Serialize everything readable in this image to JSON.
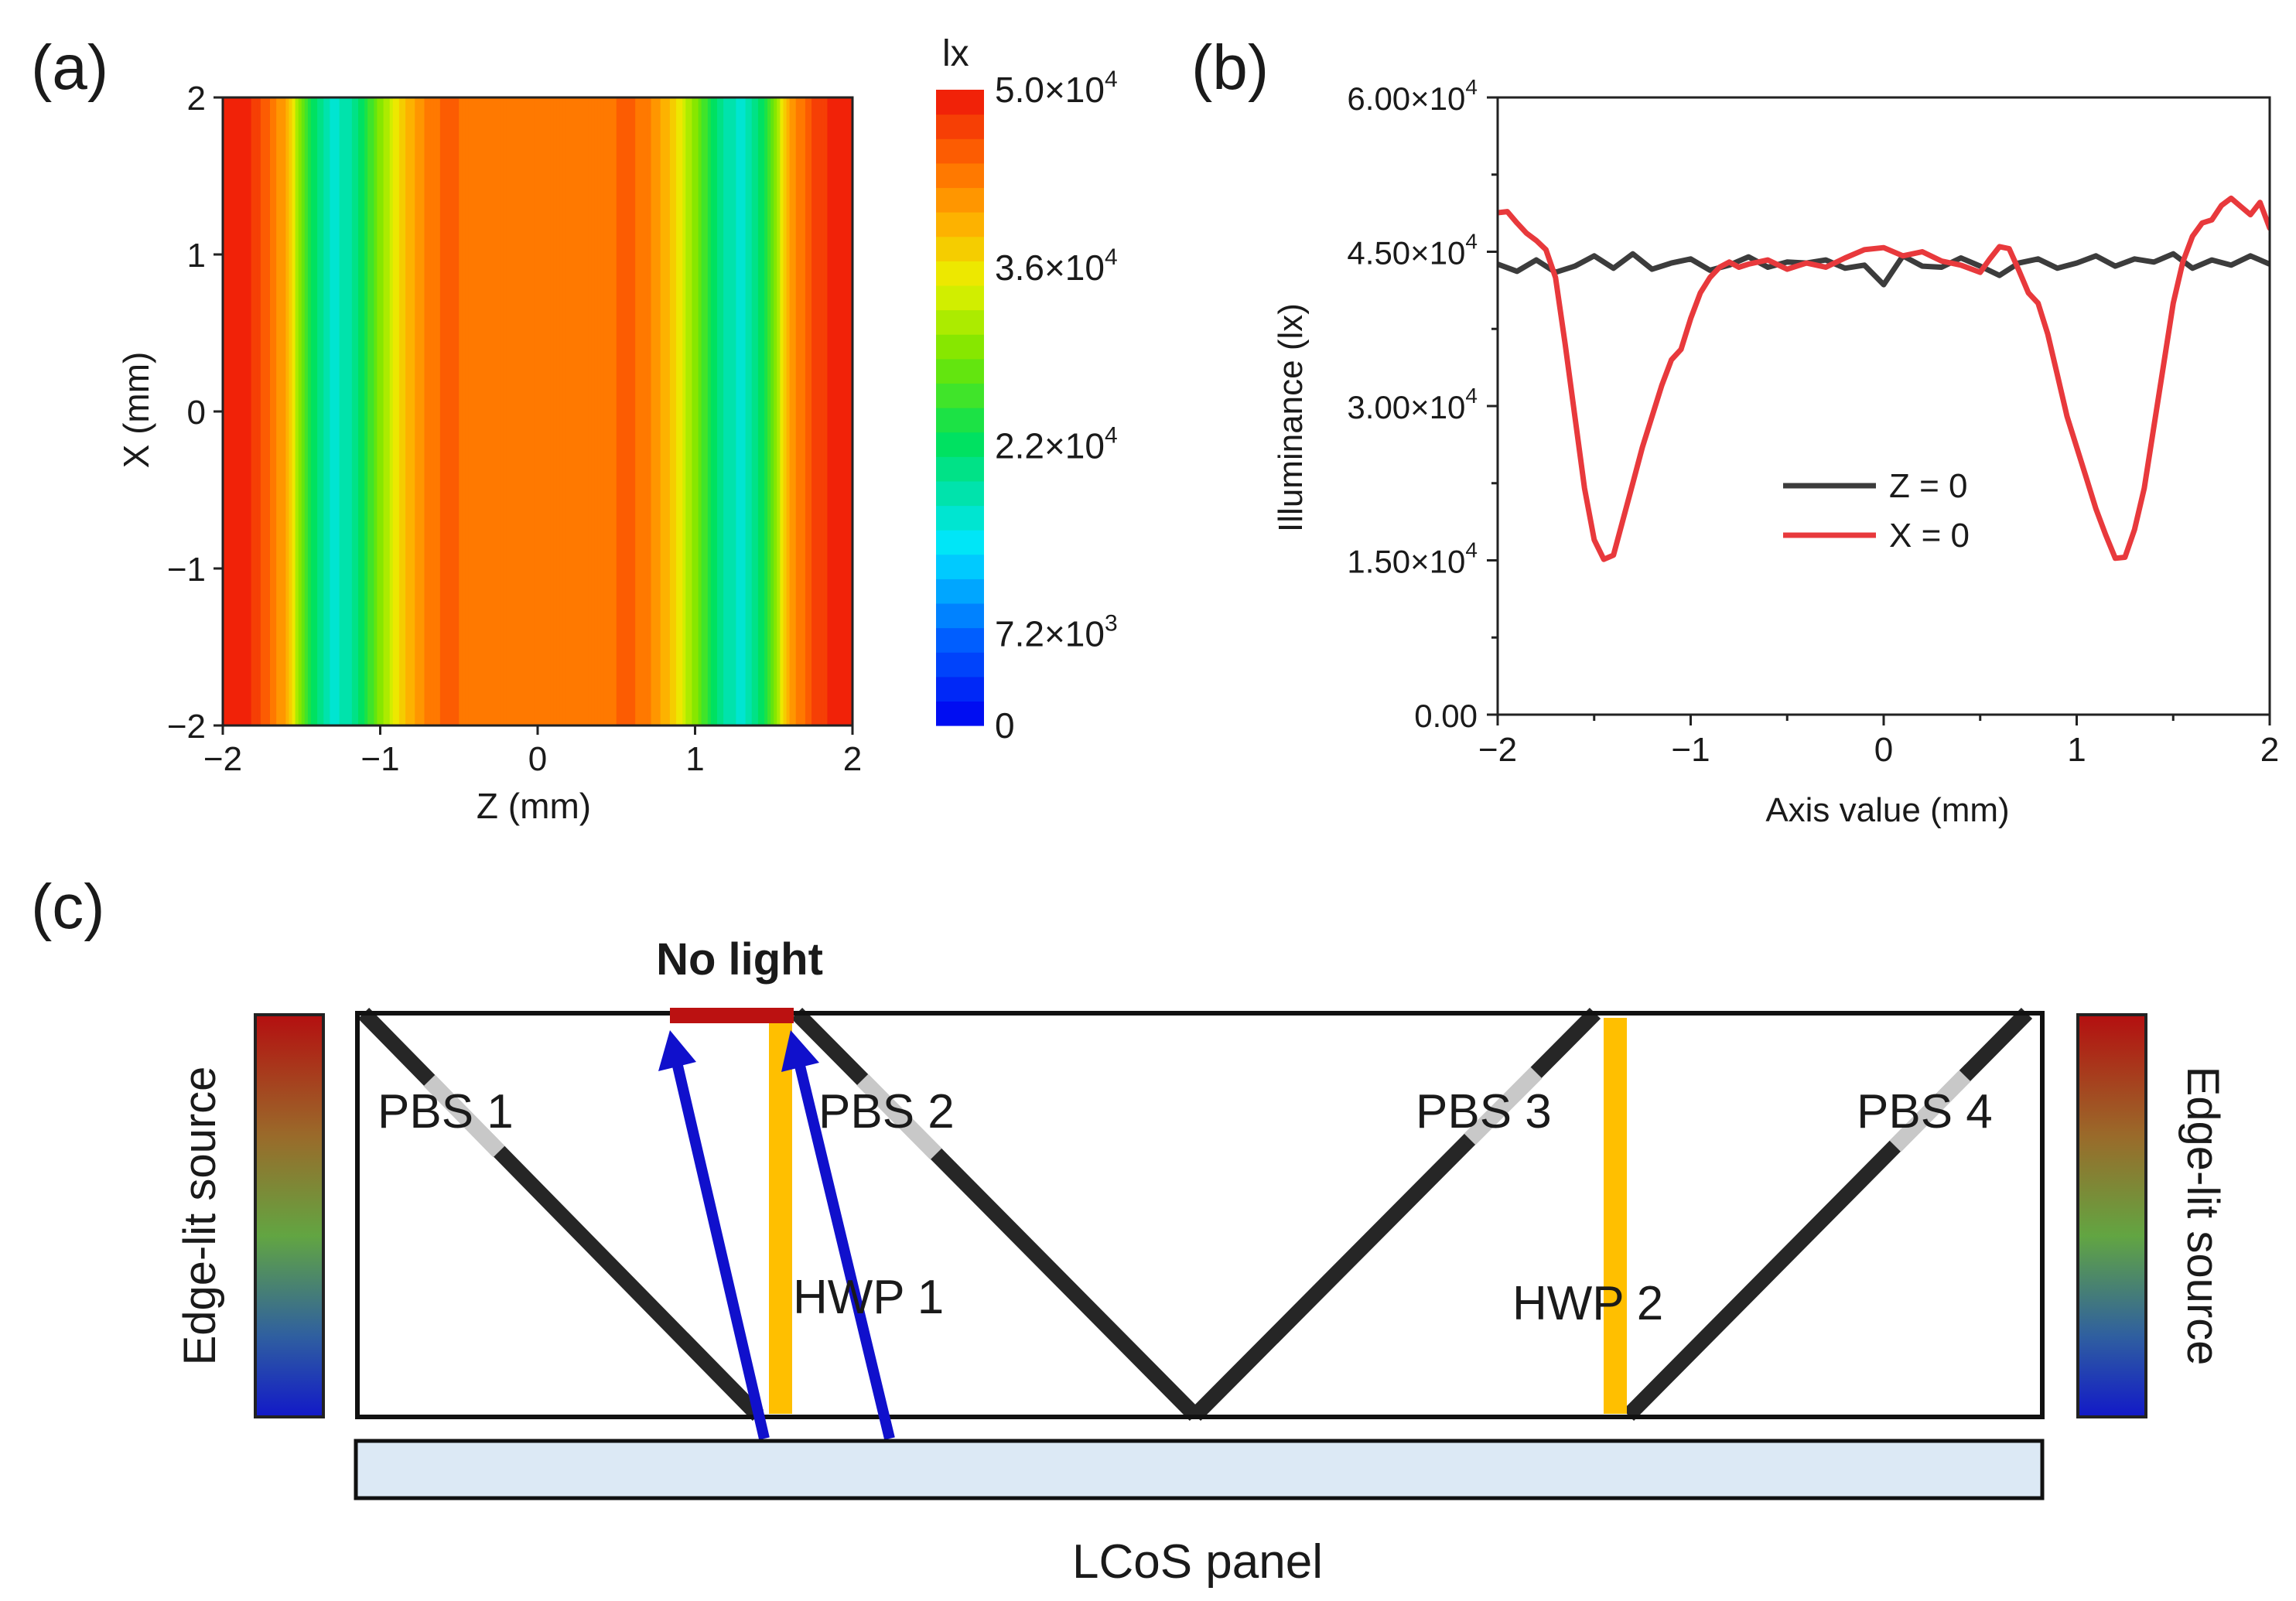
{
  "panel_labels": {
    "a": "(a)",
    "b": "(b)",
    "c": "(c)"
  },
  "chart_data": [
    {
      "id": "a",
      "type": "heatmap",
      "title": "",
      "xlabel": "Z (mm)",
      "ylabel": "X (mm)",
      "xlim": [
        -2,
        2
      ],
      "ylim": [
        -2,
        2
      ],
      "x_ticks": [
        -2,
        -1,
        0,
        1,
        2
      ],
      "x_tick_labels": [
        "−2",
        "−1",
        "0",
        "1",
        "2"
      ],
      "y_ticks": [
        -2,
        -1,
        0,
        1,
        2
      ],
      "y_tick_labels": [
        "−2",
        "−1",
        "0",
        "1",
        "2"
      ],
      "colorbar": {
        "unit_label": "lx",
        "min": 0,
        "max": 50000,
        "levels": 26,
        "ticks": [
          {
            "value": 50000,
            "label": "5.0×10",
            "exp": "4"
          },
          {
            "value": 36000,
            "label": "3.6×10",
            "exp": "4"
          },
          {
            "value": 22000,
            "label": "2.2×10",
            "exp": "4"
          },
          {
            "value": 7200,
            "label": "7.2×10",
            "exp": "3"
          },
          {
            "value": 0,
            "label": "0",
            "exp": ""
          }
        ]
      },
      "profile_vs_z": {
        "z": [
          -2.0,
          -1.8,
          -1.6,
          -1.45,
          -1.3,
          -1.15,
          -1.0,
          -0.85,
          -0.7,
          -0.6,
          -0.4,
          0.0,
          0.4,
          0.6,
          0.7,
          0.85,
          1.0,
          1.15,
          1.3,
          1.45,
          1.6,
          1.75,
          1.9,
          2.0
        ],
        "illuminance": [
          49000,
          48000,
          40000,
          24000,
          16000,
          20000,
          30000,
          38000,
          43000,
          44500,
          44000,
          44000,
          44000,
          44500,
          43000,
          38000,
          30000,
          20000,
          16000,
          24000,
          40000,
          47000,
          49000,
          49500
        ]
      }
    },
    {
      "id": "b",
      "type": "line",
      "title": "",
      "xlabel": "Axis value (mm)",
      "ylabel": "Illuminance (lx)",
      "xlim": [
        -2,
        2
      ],
      "ylim": [
        0,
        60000
      ],
      "x_ticks": [
        -2,
        -1,
        0,
        1,
        2
      ],
      "x_tick_labels": [
        "−2",
        "−1",
        "0",
        "1",
        "2"
      ],
      "y_ticks": [
        0,
        15000,
        30000,
        45000,
        60000
      ],
      "y_tick_labels": [
        {
          "mant": "0.00",
          "exp": ""
        },
        {
          "mant": "1.50×10",
          "exp": "4"
        },
        {
          "mant": "3.00×10",
          "exp": "4"
        },
        {
          "mant": "4.50×10",
          "exp": "4"
        },
        {
          "mant": "6.00×10",
          "exp": "4"
        }
      ],
      "legend_position": "center-right",
      "series": [
        {
          "name": "Z = 0",
          "color": "#3c3c3c",
          "x": [
            -2.0,
            -1.9,
            -1.8,
            -1.7,
            -1.6,
            -1.5,
            -1.4,
            -1.3,
            -1.2,
            -1.1,
            -1.0,
            -0.9,
            -0.8,
            -0.7,
            -0.6,
            -0.5,
            -0.4,
            -0.3,
            -0.2,
            -0.1,
            0.0,
            0.1,
            0.2,
            0.3,
            0.4,
            0.5,
            0.6,
            0.7,
            0.8,
            0.9,
            1.0,
            1.1,
            1.2,
            1.3,
            1.4,
            1.5,
            1.6,
            1.7,
            1.8,
            1.9,
            2.0
          ],
          "y": [
            43800,
            43100,
            44200,
            43000,
            43600,
            44600,
            43400,
            44800,
            43300,
            43900,
            44300,
            43200,
            43700,
            44500,
            43500,
            44000,
            43900,
            44200,
            43400,
            43700,
            41800,
            44600,
            43600,
            43500,
            44400,
            43600,
            42700,
            43900,
            44300,
            43400,
            43900,
            44600,
            43600,
            44300,
            44000,
            44800,
            43400,
            44200,
            43700,
            44600,
            43800
          ]
        },
        {
          "name": "X = 0",
          "color": "#e8393c",
          "x": [
            -2.0,
            -1.95,
            -1.9,
            -1.85,
            -1.8,
            -1.75,
            -1.7,
            -1.65,
            -1.6,
            -1.55,
            -1.5,
            -1.45,
            -1.4,
            -1.35,
            -1.3,
            -1.25,
            -1.2,
            -1.15,
            -1.1,
            -1.05,
            -1.0,
            -0.95,
            -0.9,
            -0.85,
            -0.8,
            -0.75,
            -0.7,
            -0.6,
            -0.5,
            -0.4,
            -0.3,
            -0.2,
            -0.1,
            0.0,
            0.1,
            0.2,
            0.3,
            0.4,
            0.5,
            0.55,
            0.6,
            0.65,
            0.7,
            0.75,
            0.8,
            0.85,
            0.9,
            0.95,
            1.0,
            1.05,
            1.1,
            1.15,
            1.2,
            1.25,
            1.3,
            1.35,
            1.4,
            1.45,
            1.5,
            1.55,
            1.6,
            1.65,
            1.7,
            1.75,
            1.8,
            1.85,
            1.9,
            1.95,
            2.0
          ],
          "y": [
            48800,
            48900,
            47800,
            46800,
            46100,
            45200,
            42500,
            36000,
            29000,
            22000,
            17000,
            15100,
            15500,
            19000,
            22500,
            26000,
            29000,
            32000,
            34500,
            35500,
            38500,
            41000,
            42500,
            43500,
            44000,
            43500,
            43800,
            44200,
            43300,
            43900,
            43500,
            44400,
            45200,
            45400,
            44600,
            45000,
            44100,
            43700,
            43000,
            44300,
            45500,
            45300,
            43200,
            41000,
            40000,
            37000,
            33000,
            29000,
            26000,
            23000,
            20000,
            17500,
            15200,
            15300,
            18000,
            22000,
            28000,
            34000,
            40000,
            44000,
            46500,
            47800,
            48100,
            49500,
            50200,
            49400,
            48600,
            49800,
            47300
          ]
        }
      ]
    }
  ],
  "diagram_c": {
    "no_light_label": "No light",
    "pbs_labels": [
      "PBS 1",
      "PBS 2",
      "PBS 3",
      "PBS 4"
    ],
    "hwp_labels": [
      "HWP 1",
      "HWP 2"
    ],
    "source_left_label": "Edge-lit source",
    "source_right_label": "Edge-lit source",
    "lcos_label": "LCoS panel",
    "colors": {
      "no_light_bar": "#bb1111",
      "no_light_text": "#c00000",
      "hwp": "#ffbf00",
      "ray": "#1010cc",
      "pbs": "#262626",
      "pbs_gap": "#c8c8c8",
      "lcos_fill": "#dce9f5"
    }
  }
}
